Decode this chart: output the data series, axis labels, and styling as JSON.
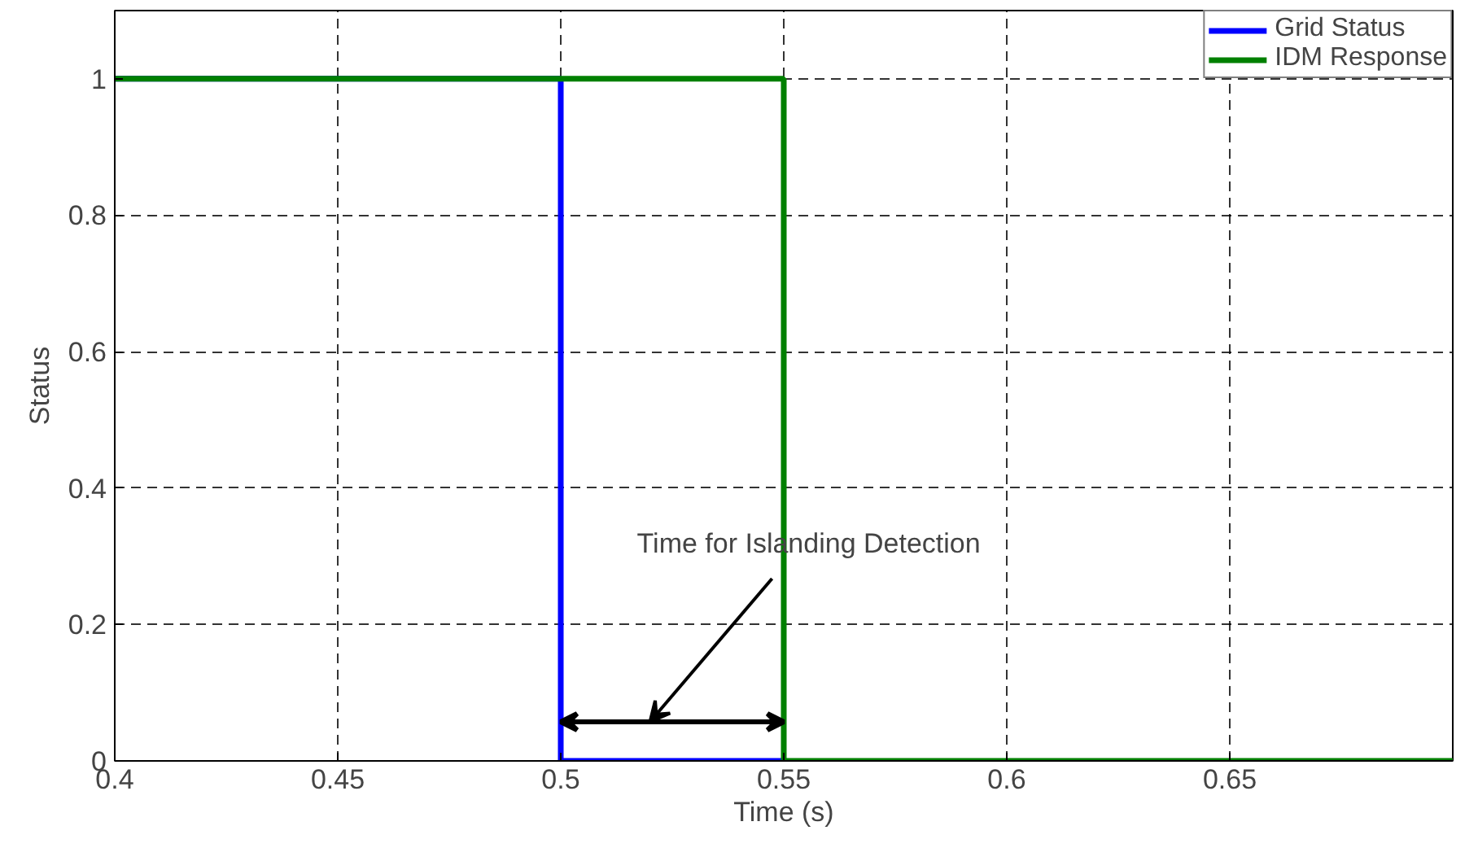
{
  "chart_data": {
    "type": "step",
    "xlabel": "Time (s)",
    "ylabel": "Status",
    "series": [
      {
        "name": "Grid Status",
        "color": "#0000ff",
        "x": [
          0.4,
          0.5,
          0.55
        ],
        "values": [
          1,
          0,
          0
        ]
      },
      {
        "name": "IDM Response",
        "color": "#008000",
        "x": [
          0.4,
          0.55,
          0.7
        ],
        "values": [
          1,
          0,
          0
        ]
      }
    ],
    "xlim": [
      0.4,
      0.7
    ],
    "ylim": [
      0,
      1.1
    ],
    "xticks": [
      0.4,
      0.45,
      0.5,
      0.55,
      0.6,
      0.65
    ],
    "yticks": [
      0,
      0.2,
      0.4,
      0.6,
      0.8,
      1
    ],
    "annotations": [
      "Time for Islanding Detection"
    ],
    "grid": true,
    "legend": "top right",
    "marker": "none",
    "line_style": "solid"
  }
}
